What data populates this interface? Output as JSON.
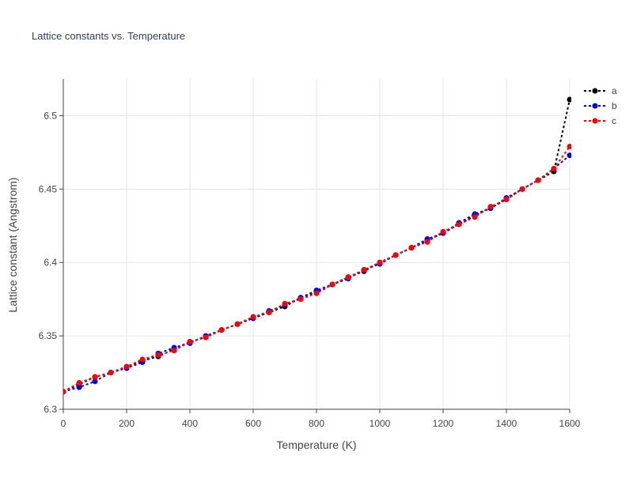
{
  "chart_data": {
    "type": "line",
    "title": "Lattice constants vs. Temperature",
    "xlabel": "Temperature (K)",
    "ylabel": "Lattice constant (Angstrom)",
    "xlim": [
      0,
      1600
    ],
    "ylim": [
      6.3,
      6.525
    ],
    "xticks": [
      0,
      200,
      400,
      600,
      800,
      1000,
      1200,
      1400,
      1600
    ],
    "xtick_labels": [
      "0",
      "200",
      "400",
      "600",
      "800",
      "1000",
      "1200",
      "1400",
      "1600"
    ],
    "yticks": [
      6.3,
      6.35,
      6.4,
      6.45,
      6.5
    ],
    "ytick_labels": [
      "6.3",
      "6.35",
      "6.4",
      "6.45",
      "6.5"
    ],
    "grid": true,
    "legend_position": "top-right outside",
    "x": [
      0,
      50,
      100,
      150,
      200,
      250,
      300,
      350,
      400,
      450,
      500,
      550,
      600,
      650,
      700,
      750,
      800,
      850,
      900,
      950,
      1000,
      1050,
      1100,
      1150,
      1200,
      1250,
      1300,
      1350,
      1400,
      1450,
      1500,
      1550,
      1600
    ],
    "series": [
      {
        "name": "a",
        "color": "#000000",
        "values": [
          6.312,
          6.317,
          6.322,
          6.325,
          6.329,
          6.333,
          6.336,
          6.341,
          6.346,
          6.349,
          6.354,
          6.358,
          6.362,
          6.366,
          6.37,
          6.376,
          6.38,
          6.385,
          6.39,
          6.394,
          6.4,
          6.405,
          6.41,
          6.415,
          6.42,
          6.426,
          6.432,
          6.437,
          6.443,
          6.45,
          6.456,
          6.462,
          6.511
        ]
      },
      {
        "name": "b",
        "color": "#0000ff",
        "values": [
          6.312,
          6.315,
          6.319,
          6.325,
          6.328,
          6.332,
          6.338,
          6.342,
          6.345,
          6.35,
          6.354,
          6.358,
          6.362,
          6.367,
          6.371,
          6.376,
          6.381,
          6.385,
          6.389,
          6.395,
          6.399,
          6.405,
          6.41,
          6.416,
          6.42,
          6.427,
          6.433,
          6.437,
          6.444,
          6.45,
          6.456,
          6.464,
          6.473
        ]
      },
      {
        "name": "c",
        "color": "#ff0000",
        "values": [
          6.312,
          6.318,
          6.322,
          6.325,
          6.329,
          6.334,
          6.337,
          6.34,
          6.346,
          6.349,
          6.354,
          6.358,
          6.363,
          6.366,
          6.372,
          6.375,
          6.379,
          6.385,
          6.39,
          6.395,
          6.4,
          6.405,
          6.41,
          6.414,
          6.421,
          6.426,
          6.431,
          6.438,
          6.443,
          6.45,
          6.456,
          6.464,
          6.479
        ]
      }
    ]
  }
}
